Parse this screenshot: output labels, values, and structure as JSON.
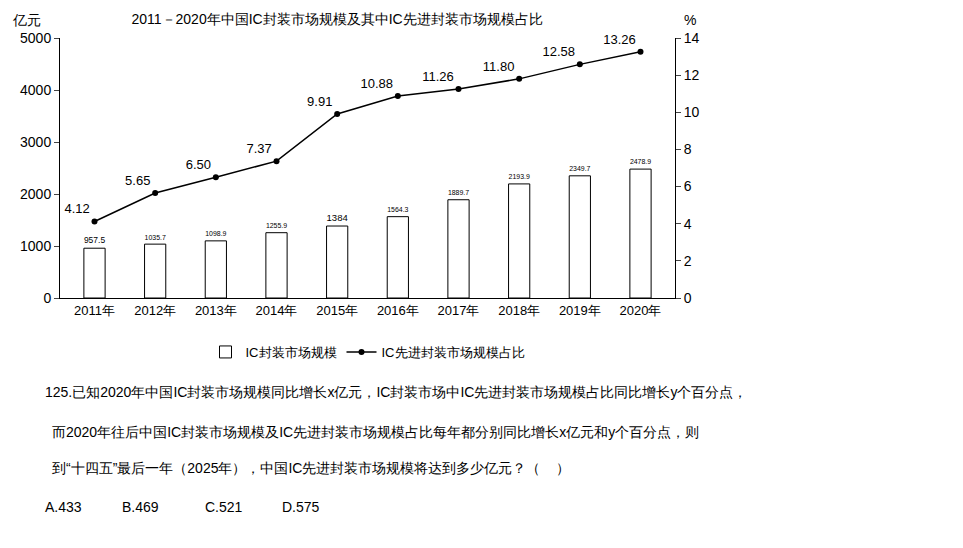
{
  "chart_data": {
    "type": "bar",
    "title": "2011－2020年中国IC封装市场规模及其中IC先进封装市场规模占比",
    "y_label": "亿元",
    "y2_label": "%",
    "categories": [
      "2011年",
      "2012年",
      "2013年",
      "2014年",
      "2015年",
      "2016年",
      "2017年",
      "2018年",
      "2019年",
      "2020年"
    ],
    "series": [
      {
        "name": "IC封装市场规模",
        "type": "bar",
        "color": "#ffffff",
        "values": [
          957.5,
          1035.7,
          1098.9,
          1255.9,
          1384,
          1564.3,
          1889.7,
          2193.9,
          2349.7,
          2478.9
        ]
      },
      {
        "name": "IC先进封装市场规模占比",
        "type": "line",
        "axis": "y2",
        "color": "#000000",
        "marker": "circle",
        "values": [
          4.12,
          5.65,
          6.5,
          7.37,
          9.91,
          10.88,
          11.26,
          11.8,
          12.58,
          13.26
        ],
        "value_labels": [
          "4.12",
          "5.65",
          "6.50",
          "7.37",
          "9.91",
          "10.88",
          "11.26",
          "11.80",
          "12.58",
          "13.26"
        ]
      }
    ],
    "ylim": [
      0,
      5000
    ],
    "yticks": [
      0,
      1000,
      2000,
      3000,
      4000,
      5000
    ],
    "y2lim": [
      0,
      14
    ],
    "y2ticks": [
      0,
      2,
      4,
      6,
      8,
      10,
      12,
      14
    ],
    "grid": false,
    "legend": "bottom",
    "data_labels": true,
    "annotations": [
      "125.已知2020年中国IC封装市场规模同比增长x亿元，IC封装市场中IC先进封装市场规模占比同比增长y个百分点，",
      "而2020年往后中国IC封装市场规模及IC先进封装市场规模占比每年都分别同比增长x亿元和y个百分点，则",
      "到“十四五”最后一年（2025年），中国IC先进封装市场规模将达到多少亿元？（    ）",
      "A.433",
      "B.469",
      "C.521",
      "D.575"
    ]
  }
}
